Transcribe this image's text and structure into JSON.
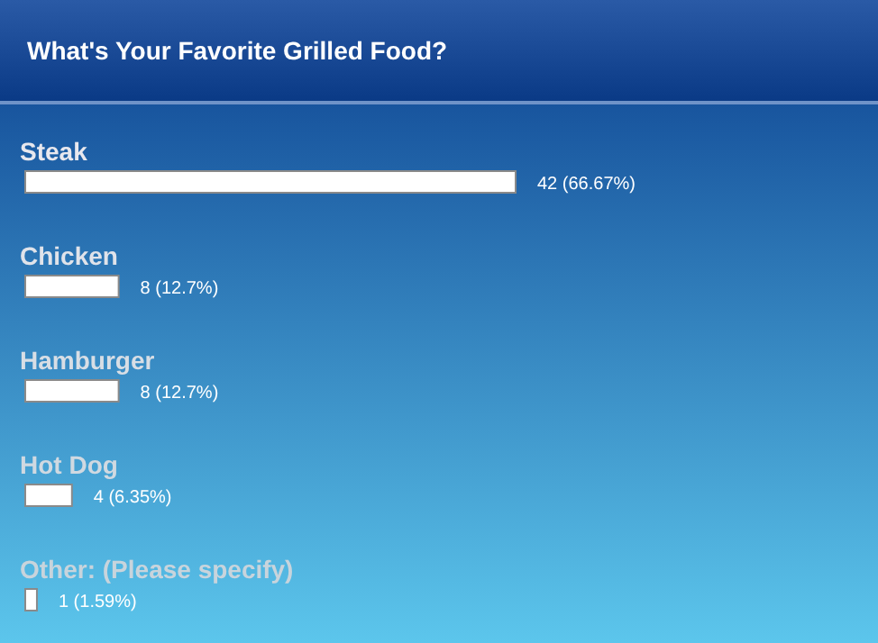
{
  "chart_data": {
    "type": "bar",
    "orientation": "horizontal",
    "title": "What's Your Favorite Grilled Food?",
    "categories": [
      "Steak",
      "Chicken",
      "Hamburger",
      "Hot Dog",
      "Other: (Please specify)"
    ],
    "values": [
      42,
      8,
      8,
      4,
      1
    ],
    "color": "#ffffff",
    "value_labels": [
      "42 (66.67%)",
      "8 (12.7%)",
      "8 (12.7%)",
      "4 (6.35%)",
      "1 (1.59%)"
    ]
  }
}
